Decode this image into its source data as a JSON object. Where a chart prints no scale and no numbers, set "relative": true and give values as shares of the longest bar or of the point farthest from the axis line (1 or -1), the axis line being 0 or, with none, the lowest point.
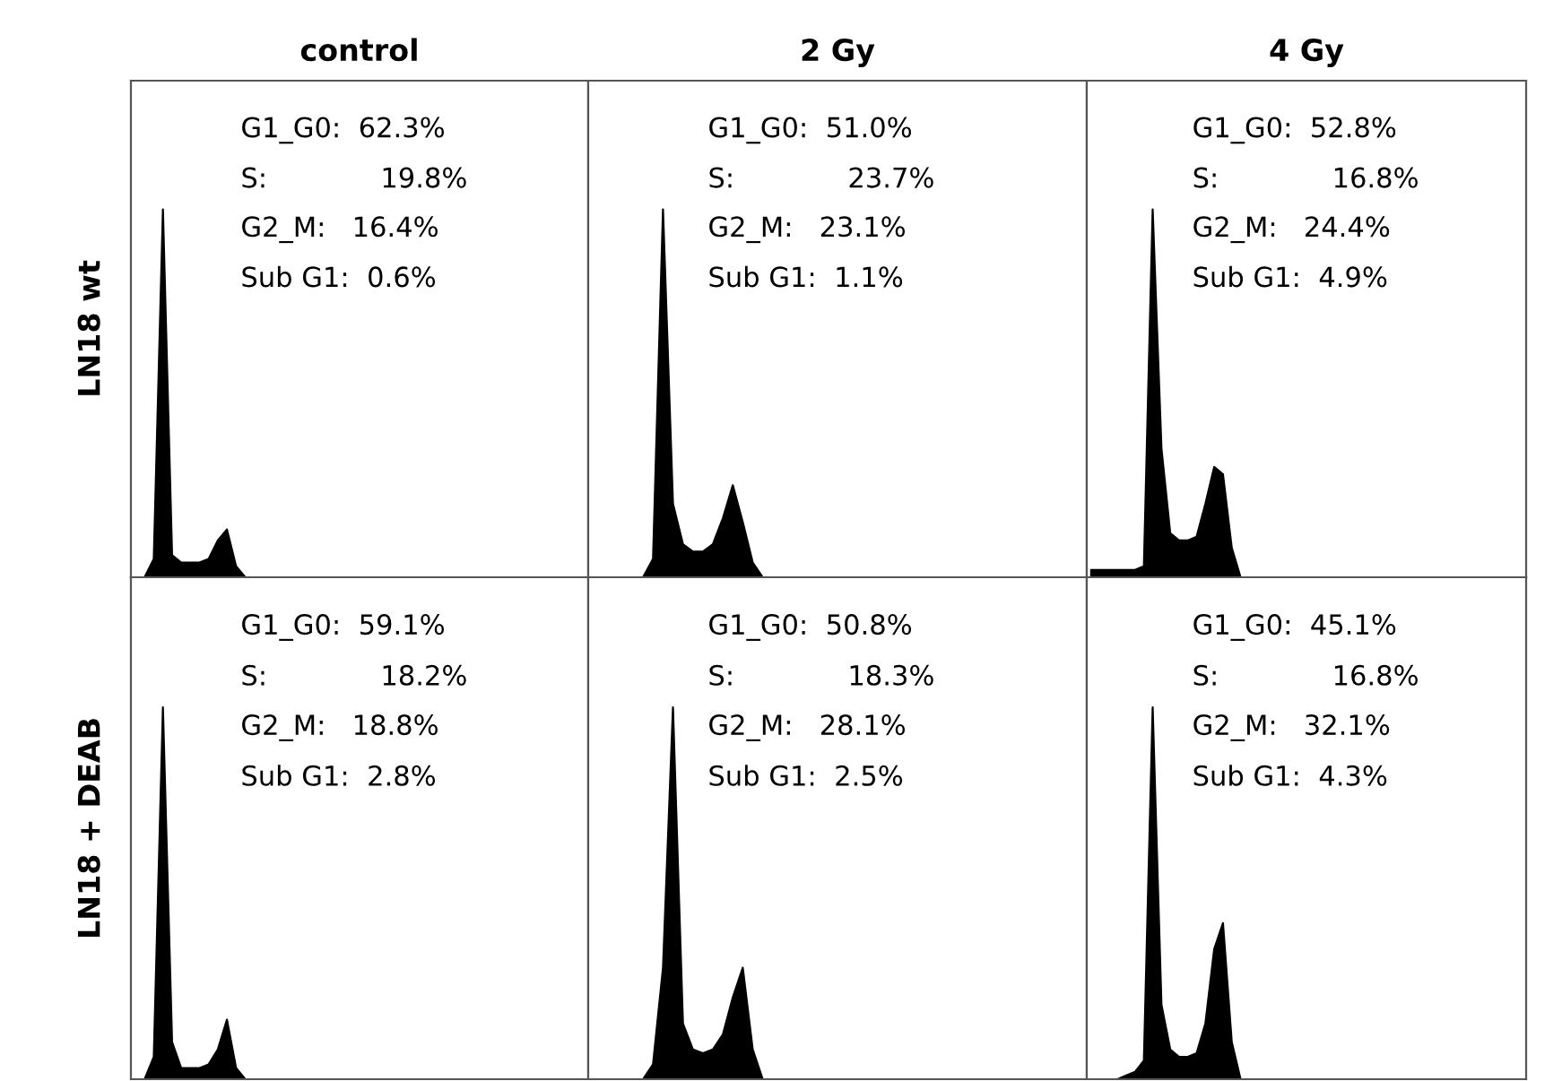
{
  "chart_data": [
    {
      "type": "area",
      "title": "control",
      "ylabel": "LN18 wt",
      "relative": true,
      "categories": [
        null,
        null,
        null,
        null,
        null,
        null,
        null,
        null,
        null,
        null,
        null,
        null,
        null,
        null,
        null,
        null,
        null,
        null,
        null,
        null,
        null,
        null,
        null,
        null,
        null,
        null,
        null,
        null,
        null,
        null,
        null,
        null,
        null,
        null,
        null,
        null,
        null,
        null,
        null,
        null,
        null,
        null,
        null,
        null,
        null,
        null,
        null,
        null,
        null,
        null
      ],
      "series": [
        {
          "color": "#000000",
          "values": [
            0,
            0,
            0.05,
            1.0,
            0.06,
            0.04,
            0.04,
            0.04,
            0.05,
            0.1,
            0.13,
            0.03,
            0,
            0,
            0,
            0,
            0,
            0,
            0,
            0,
            0,
            0,
            0,
            0,
            0,
            0,
            0,
            0,
            0,
            0,
            0,
            0,
            0,
            0,
            0,
            0,
            0,
            0,
            0,
            0,
            0,
            0,
            0,
            0,
            0,
            0,
            0,
            0,
            0,
            0
          ]
        }
      ],
      "annotations": [
        "G1_G0:  62.3%",
        "S:             19.8%",
        "G2_M:   16.4%",
        "Sub G1:  0.6%"
      ]
    },
    {
      "type": "area",
      "title": "2 Gy",
      "relative": true,
      "categories": [
        null,
        null,
        null,
        null,
        null,
        null,
        null,
        null,
        null,
        null,
        null,
        null,
        null,
        null,
        null,
        null,
        null,
        null,
        null,
        null,
        null,
        null,
        null,
        null,
        null,
        null,
        null,
        null,
        null,
        null,
        null,
        null,
        null,
        null,
        null,
        null,
        null,
        null,
        null,
        null,
        null,
        null,
        null,
        null,
        null,
        null,
        null,
        null,
        null,
        null
      ],
      "series": [
        {
          "color": "#000000",
          "values": [
            0,
            0,
            0,
            0,
            0,
            0,
            0.05,
            1.0,
            0.2,
            0.09,
            0.07,
            0.07,
            0.09,
            0.16,
            0.25,
            0.15,
            0.04,
            0,
            0,
            0,
            0,
            0,
            0,
            0,
            0,
            0,
            0,
            0,
            0,
            0,
            0,
            0,
            0,
            0,
            0,
            0,
            0,
            0,
            0,
            0,
            0,
            0,
            0,
            0,
            0,
            0,
            0,
            0,
            0,
            0
          ]
        }
      ],
      "annotations": [
        "G1_G0:  51.0%",
        "S:             23.7%",
        "G2_M:   23.1%",
        "Sub G1:  1.1%"
      ]
    },
    {
      "type": "area",
      "title": "4 Gy",
      "relative": true,
      "categories": [
        null,
        null,
        null,
        null,
        null,
        null,
        null,
        null,
        null,
        null,
        null,
        null,
        null,
        null,
        null,
        null,
        null,
        null,
        null,
        null,
        null,
        null,
        null,
        null,
        null,
        null,
        null,
        null,
        null,
        null,
        null,
        null,
        null,
        null,
        null,
        null,
        null,
        null,
        null,
        null,
        null,
        null,
        null,
        null,
        null,
        null,
        null,
        null,
        null,
        null
      ],
      "series": [
        {
          "color": "#000000",
          "values": [
            0.02,
            0.02,
            0.02,
            0.02,
            0.02,
            0.02,
            0.03,
            1.0,
            0.35,
            0.12,
            0.1,
            0.1,
            0.11,
            0.2,
            0.3,
            0.28,
            0.08,
            0,
            0,
            0,
            0,
            0,
            0,
            0,
            0,
            0,
            0,
            0,
            0,
            0,
            0,
            0,
            0,
            0,
            0,
            0,
            0,
            0,
            0,
            0,
            0,
            0,
            0,
            0,
            0,
            0,
            0,
            0,
            0,
            0
          ]
        }
      ],
      "annotations": [
        "G1_G0:  52.8%",
        "S:             16.8%",
        "G2_M:   24.4%",
        "Sub G1:  4.9%"
      ]
    },
    {
      "type": "area",
      "ylabel": "LN18 + DEAB",
      "relative": true,
      "categories": [
        null,
        null,
        null,
        null,
        null,
        null,
        null,
        null,
        null,
        null,
        null,
        null,
        null,
        null,
        null,
        null,
        null,
        null,
        null,
        null,
        null,
        null,
        null,
        null,
        null,
        null,
        null,
        null,
        null,
        null,
        null,
        null,
        null,
        null,
        null,
        null,
        null,
        null,
        null,
        null,
        null,
        null,
        null,
        null,
        null,
        null,
        null,
        null,
        null,
        null
      ],
      "series": [
        {
          "color": "#000000",
          "values": [
            0,
            0,
            0.06,
            1.0,
            0.1,
            0.03,
            0.03,
            0.03,
            0.04,
            0.08,
            0.16,
            0.03,
            0,
            0,
            0,
            0,
            0,
            0,
            0,
            0,
            0,
            0,
            0,
            0,
            0,
            0,
            0,
            0,
            0,
            0,
            0,
            0,
            0,
            0,
            0,
            0,
            0,
            0,
            0,
            0,
            0,
            0,
            0,
            0,
            0,
            0,
            0,
            0,
            0,
            0
          ]
        }
      ],
      "annotations": [
        "G1_G0:  59.1%",
        "S:             18.2%",
        "G2_M:   18.8%",
        "Sub G1:  2.8%"
      ]
    },
    {
      "type": "area",
      "relative": true,
      "categories": [
        null,
        null,
        null,
        null,
        null,
        null,
        null,
        null,
        null,
        null,
        null,
        null,
        null,
        null,
        null,
        null,
        null,
        null,
        null,
        null,
        null,
        null,
        null,
        null,
        null,
        null,
        null,
        null,
        null,
        null,
        null,
        null,
        null,
        null,
        null,
        null,
        null,
        null,
        null,
        null,
        null,
        null,
        null,
        null,
        null,
        null,
        null,
        null,
        null,
        null
      ],
      "series": [
        {
          "color": "#000000",
          "values": [
            0,
            0,
            0,
            0,
            0,
            0,
            0.04,
            0.3,
            1.0,
            0.15,
            0.08,
            0.07,
            0.08,
            0.12,
            0.22,
            0.3,
            0.08,
            0,
            0,
            0,
            0,
            0,
            0,
            0,
            0,
            0,
            0,
            0,
            0,
            0,
            0,
            0,
            0,
            0,
            0,
            0,
            0,
            0,
            0,
            0,
            0,
            0,
            0,
            0,
            0,
            0,
            0,
            0,
            0,
            0
          ]
        }
      ],
      "annotations": [
        "G1_G0:  50.8%",
        "S:             18.3%",
        "G2_M:   28.1%",
        "Sub G1:  2.5%"
      ]
    },
    {
      "type": "area",
      "relative": true,
      "categories": [
        null,
        null,
        null,
        null,
        null,
        null,
        null,
        null,
        null,
        null,
        null,
        null,
        null,
        null,
        null,
        null,
        null,
        null,
        null,
        null,
        null,
        null,
        null,
        null,
        null,
        null,
        null,
        null,
        null,
        null,
        null,
        null,
        null,
        null,
        null,
        null,
        null,
        null,
        null,
        null,
        null,
        null,
        null,
        null,
        null,
        null,
        null,
        null,
        null,
        null
      ],
      "series": [
        {
          "color": "#000000",
          "values": [
            0,
            0,
            0,
            0,
            0.01,
            0.02,
            0.05,
            1.0,
            0.2,
            0.08,
            0.06,
            0.06,
            0.07,
            0.15,
            0.35,
            0.42,
            0.1,
            0,
            0,
            0,
            0,
            0,
            0,
            0,
            0,
            0,
            0,
            0,
            0,
            0,
            0,
            0,
            0,
            0,
            0,
            0,
            0,
            0,
            0,
            0,
            0,
            0,
            0,
            0,
            0,
            0,
            0,
            0,
            0,
            0
          ]
        }
      ],
      "annotations": [
        "G1_G0:  45.1%",
        "S:             16.8%",
        "G2_M:   32.1%",
        "Sub G1:  4.3%"
      ]
    }
  ]
}
